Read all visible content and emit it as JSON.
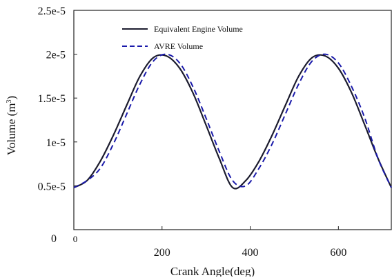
{
  "chart_data": {
    "type": "line",
    "title": "",
    "xlabel": "Crank Angle(deg)",
    "ylabel": "Volume (m",
    "ylabel_sup": "3",
    "ylabel_close": ")",
    "xlim": [
      0,
      720
    ],
    "ylim": [
      0,
      2.5e-05
    ],
    "xticks": [
      {
        "value": 0,
        "label": "0"
      },
      {
        "value": 200,
        "label": "200"
      },
      {
        "value": 400,
        "label": "400"
      },
      {
        "value": 600,
        "label": "600"
      }
    ],
    "yticks": [
      {
        "value": 0,
        "label": "0"
      },
      {
        "value": 5e-06,
        "label": "0.5e-5"
      },
      {
        "value": 1e-05,
        "label": "1e-5"
      },
      {
        "value": 1.5e-05,
        "label": "1.5e-5"
      },
      {
        "value": 2e-05,
        "label": "2e-5"
      },
      {
        "value": 2.5e-05,
        "label": "2.5e-5"
      }
    ],
    "grid": false,
    "legend_position": "top-left",
    "series": [
      {
        "name": "Equivalent Engine Volume",
        "style": "solid",
        "color": "#1c1c2e",
        "x": [
          0,
          30,
          60,
          90,
          120,
          150,
          180,
          210,
          240,
          270,
          300,
          330,
          360,
          390,
          420,
          450,
          480,
          510,
          540,
          570,
          600,
          630,
          660,
          690,
          720
        ],
        "y": [
          4.8e-06,
          5.6e-06,
          7.8e-06,
          1.08e-05,
          1.42e-05,
          1.75e-05,
          1.96e-05,
          1.98e-05,
          1.84e-05,
          1.56e-05,
          1.19e-05,
          8.1e-06,
          4.8e-06,
          5.6e-06,
          7.8e-06,
          1.08e-05,
          1.42e-05,
          1.75e-05,
          1.96e-05,
          1.98e-05,
          1.84e-05,
          1.56e-05,
          1.19e-05,
          8.1e-06,
          4.8e-06
        ]
      },
      {
        "name": "AVRE Volume",
        "style": "dashed",
        "color": "#1a1aaa",
        "x": [
          0,
          30,
          60,
          90,
          120,
          150,
          180,
          210,
          240,
          270,
          300,
          330,
          360,
          390,
          420,
          450,
          480,
          510,
          540,
          570,
          600,
          630,
          660,
          690,
          720
        ],
        "y": [
          4.8e-06,
          5.6e-06,
          7e-06,
          9.8e-06,
          1.32e-05,
          1.66e-05,
          1.92e-05,
          2e-05,
          1.9e-05,
          1.63e-05,
          1.27e-05,
          8.9e-06,
          5.6e-06,
          5e-06,
          7e-06,
          9.8e-06,
          1.32e-05,
          1.66e-05,
          1.92e-05,
          2e-05,
          1.9e-05,
          1.63e-05,
          1.27e-05,
          8.1e-06,
          4.8e-06
        ]
      }
    ]
  }
}
